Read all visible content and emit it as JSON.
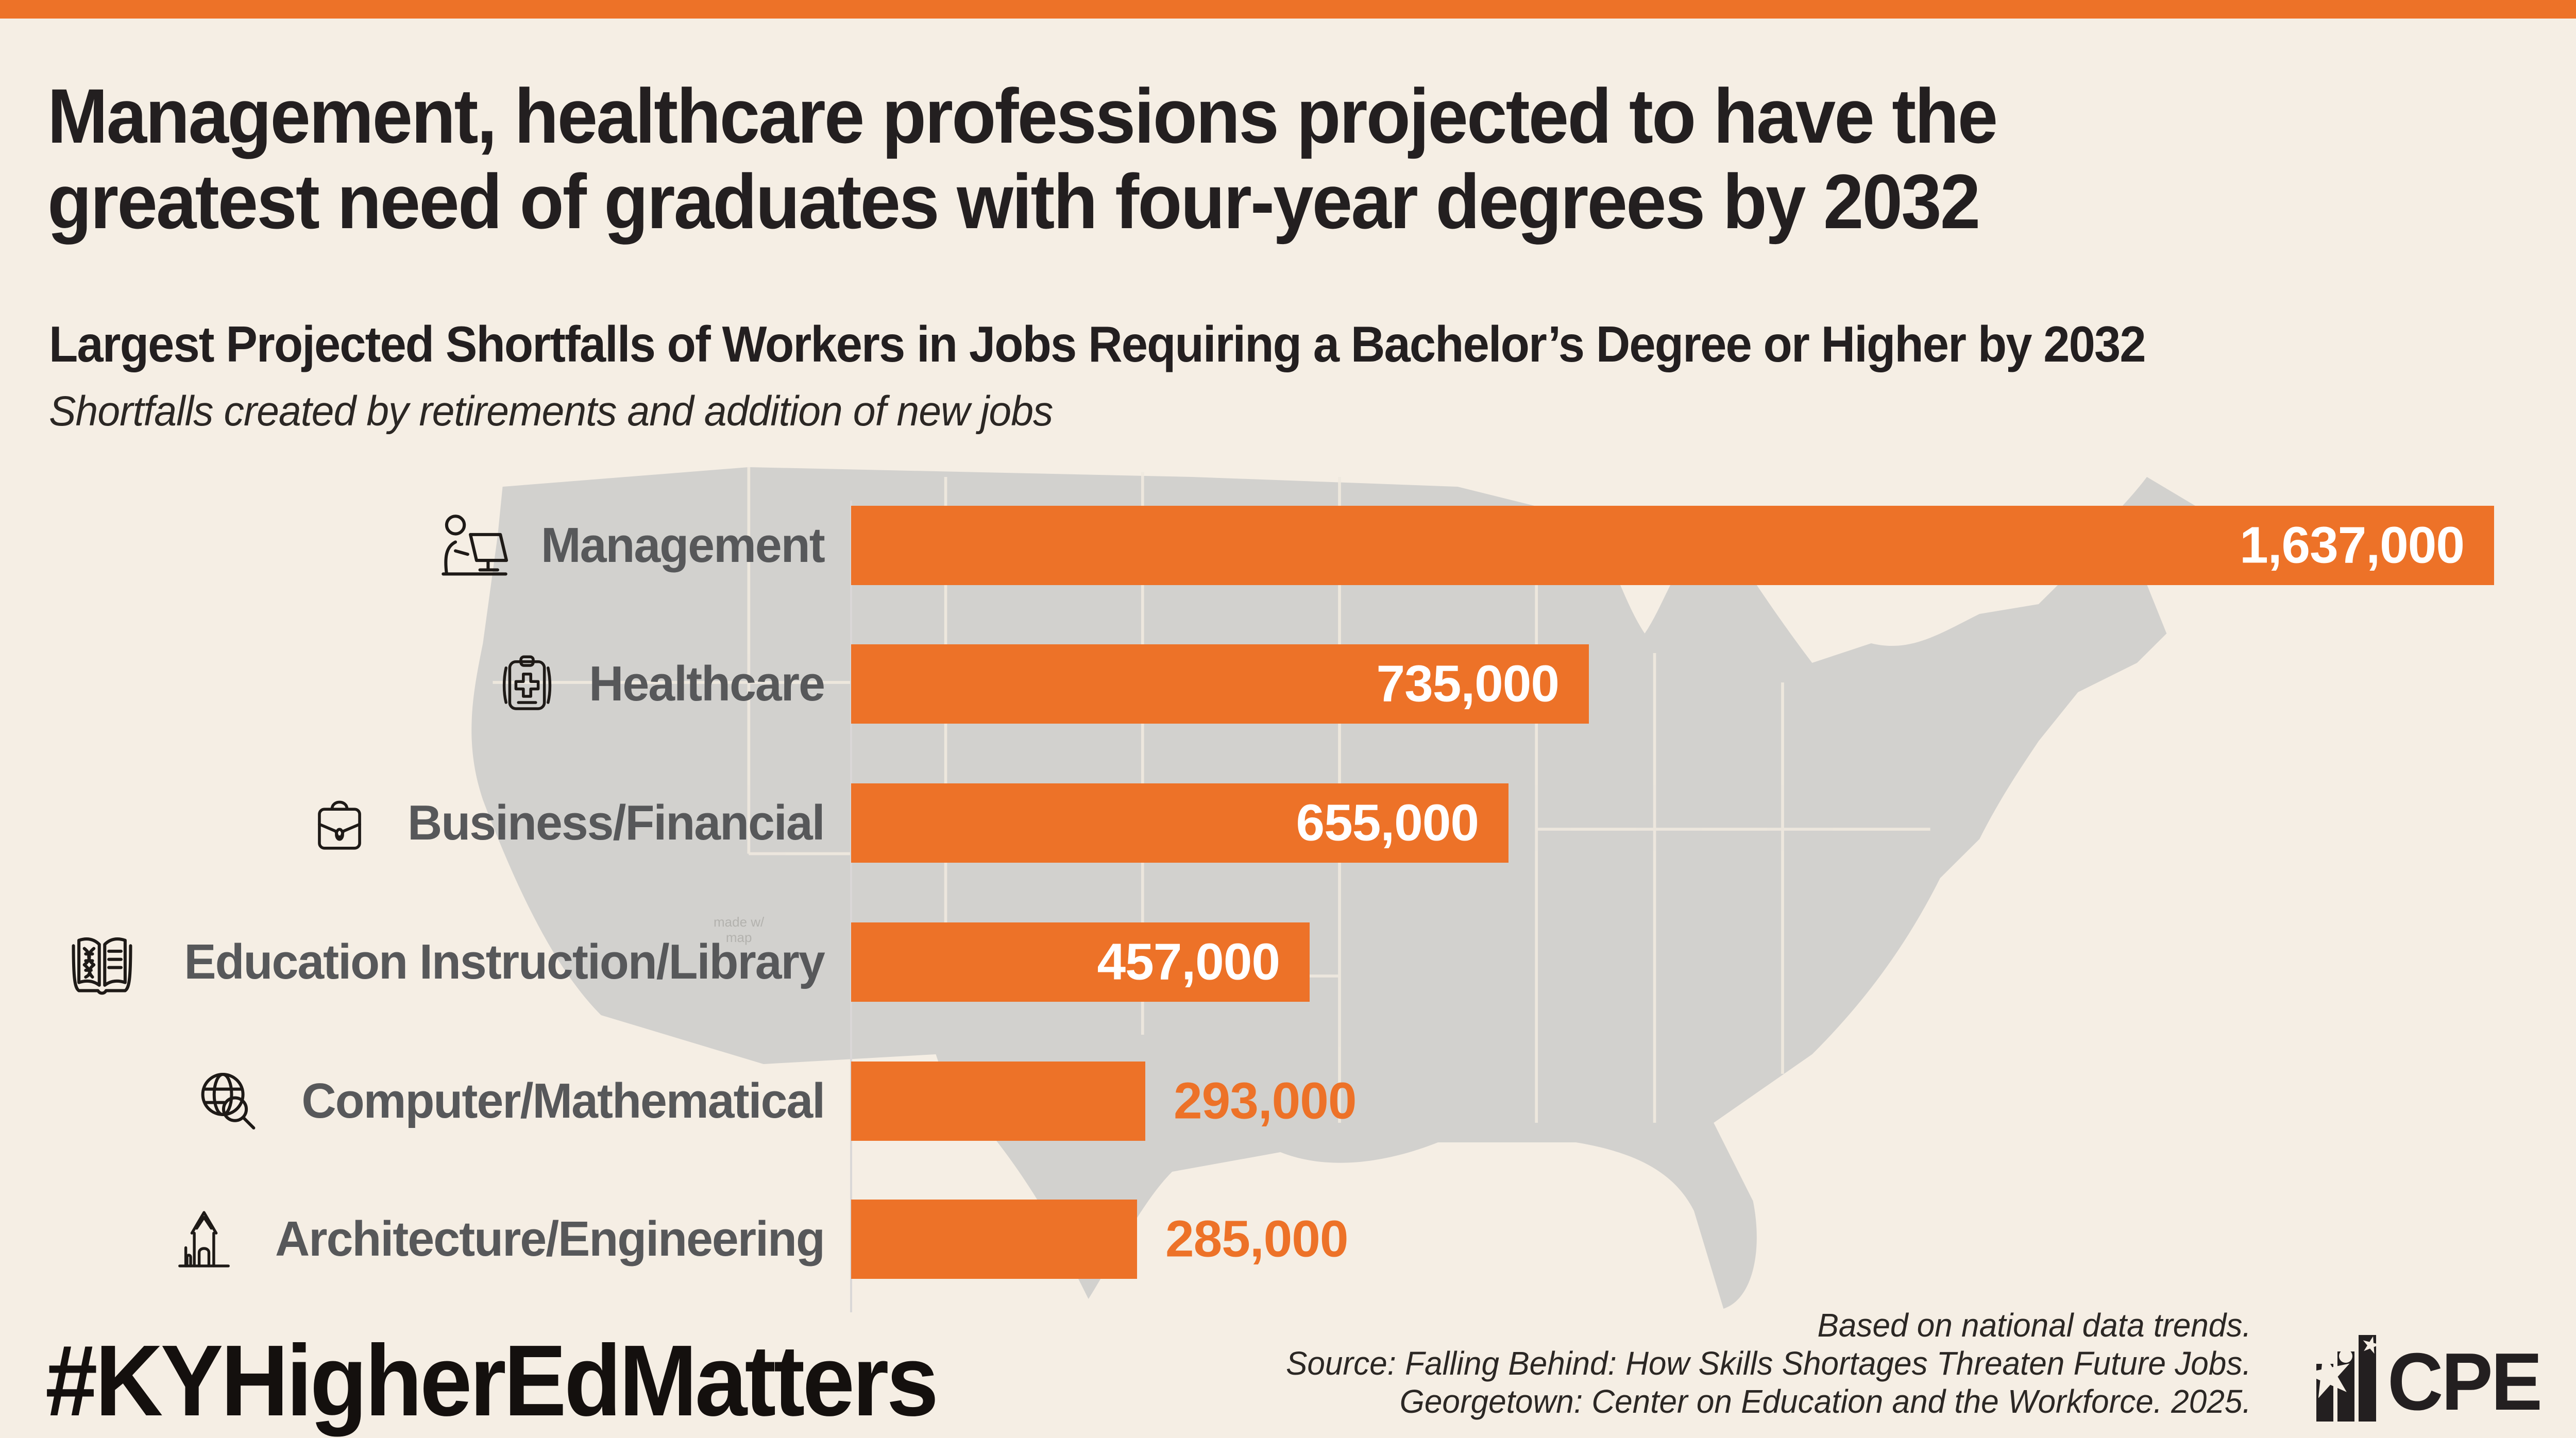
{
  "page": {
    "background": "#F5EEE4",
    "accent_orange": "#ED7228",
    "map_gray": "#D2D1CE",
    "label_gray": "#57585A"
  },
  "header": {
    "title_line1": "Management, healthcare professions projected to have the",
    "title_line2": "greatest need of graduates with four-year degrees by 2032",
    "subtitle": "Largest Projected Shortfalls of Workers in Jobs Requiring a Bachelor’s Degree or Higher by 2032",
    "note": "Shortfalls created by retirements and addition of new jobs"
  },
  "chart_data": {
    "type": "bar",
    "orientation": "horizontal",
    "title": "Largest Projected Shortfalls of Workers in Jobs Requiring a Bachelor’s Degree or Higher by 2032",
    "categories": [
      "Management",
      "Healthcare",
      "Business/Financial",
      "Education Instruction/Library",
      "Computer/Mathematical",
      "Architecture/Engineering"
    ],
    "values": [
      1637000,
      735000,
      655000,
      457000,
      293000,
      285000
    ],
    "value_labels": [
      "1,637,000",
      "735,000",
      "655,000",
      "457,000",
      "293,000",
      "285,000"
    ],
    "value_label_inside": [
      true,
      true,
      true,
      true,
      false,
      false
    ],
    "icons": [
      "person-at-laptop",
      "medical-clipboard",
      "briefcase",
      "open-book-dna",
      "globe-magnifier",
      "building-engineering"
    ],
    "bar_color": "#ED7228",
    "xlim": [
      0,
      1637000
    ],
    "grid": false,
    "legend": false,
    "background": "us-map-silhouette"
  },
  "map": {
    "watermark_line1": "made w/",
    "watermark_line2": "map"
  },
  "footer": {
    "hashtag": "#KYHigherEdMatters",
    "source_line1": "Based on national data trends.",
    "source_line2": "Source: Falling Behind: How Skills Shortages Threaten Future Jobs.",
    "source_line3": "Georgetown: Center on Education and the Workforce. 2025.",
    "logo_text": "CPE"
  }
}
